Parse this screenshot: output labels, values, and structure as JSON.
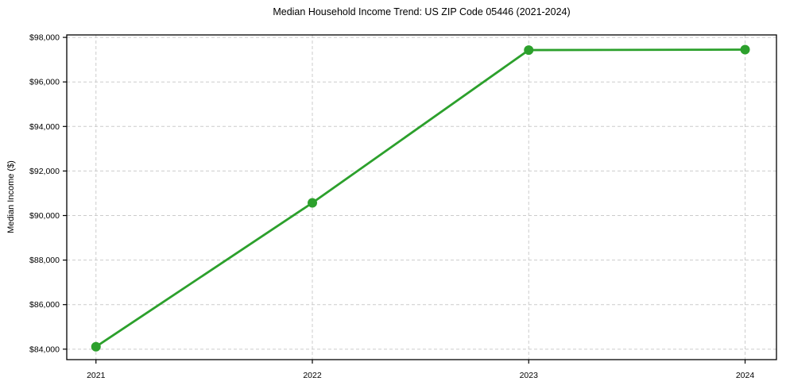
{
  "figure": {
    "background": "#ffffff",
    "spine_color": "#000000",
    "grid_color": "#cccccc"
  },
  "chart_data": {
    "type": "line",
    "title": "Median Household Income Trend: US ZIP Code 05446 (2021-2024)",
    "xlabel": "",
    "ylabel": "Median Income ($)",
    "x": [
      2021,
      2022,
      2023,
      2024
    ],
    "series": [
      {
        "name": "Median Household Income",
        "values": [
          84110,
          90570,
          97430,
          97450
        ]
      }
    ],
    "xticks": [
      2021,
      2022,
      2023,
      2024
    ],
    "xtick_labels": [
      "2021",
      "2022",
      "2023",
      "2024"
    ],
    "yticks": [
      84000,
      86000,
      88000,
      90000,
      92000,
      94000,
      96000,
      98000
    ],
    "ytick_labels": [
      "$84,000",
      "$86,000",
      "$88,000",
      "$90,000",
      "$92,000",
      "$94,000",
      "$96,000",
      "$98,000"
    ],
    "xlim": [
      2020.865,
      2024.145
    ],
    "ylim": [
      83530,
      98110
    ],
    "grid": true,
    "grid_style": "dashed",
    "legend_position": "none",
    "line_color": "#2ca02c",
    "marker": "circle"
  }
}
